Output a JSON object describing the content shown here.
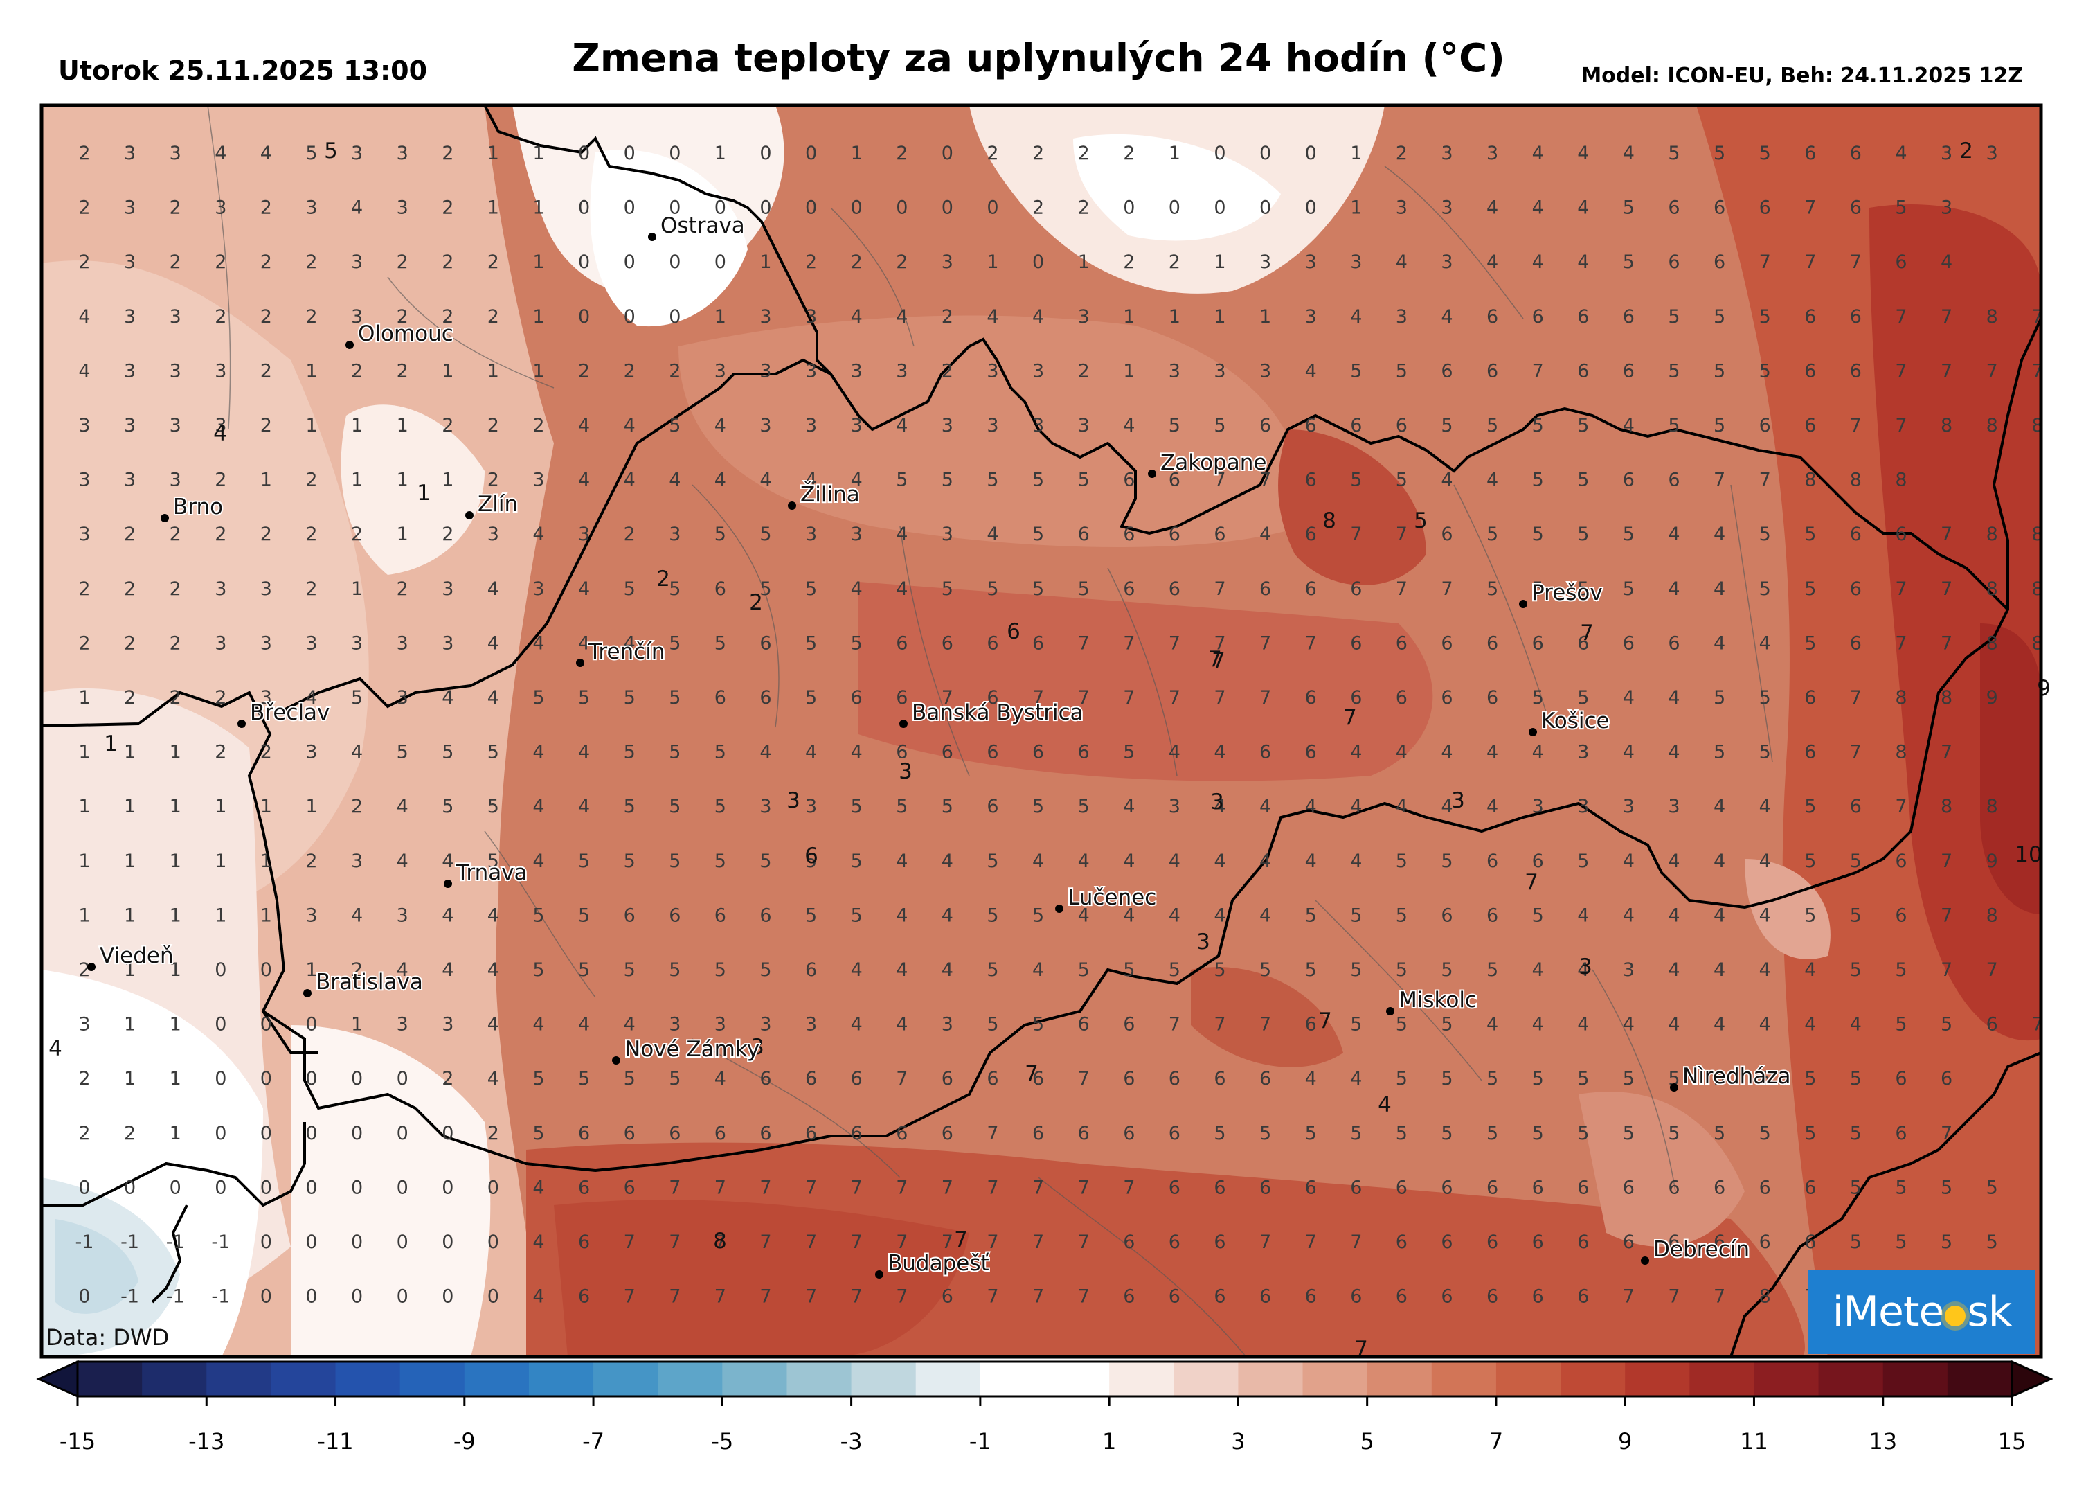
{
  "header": {
    "date": "Utorok 25.11.2025 13:00",
    "title": "Zmena teploty za uplynulých 24 hodín (°C)",
    "model": "Model: ICON-EU, Beh: 24.11.2025 12Z"
  },
  "credit": "Data: DWD",
  "logo": {
    "left": "iMete",
    "right": "sk"
  },
  "colorbar": {
    "ticks": [
      "-15",
      "-13",
      "-11",
      "-9",
      "-7",
      "-5",
      "-3",
      "-1",
      "1",
      "3",
      "5",
      "7",
      "9",
      "11",
      "13",
      "15"
    ],
    "colors": [
      "#1a1f4e",
      "#1d2c6b",
      "#223a87",
      "#24459b",
      "#2453ad",
      "#2563b8",
      "#2a74c0",
      "#3385c4",
      "#4595c6",
      "#5da5c9",
      "#7bb4cc",
      "#9dc5d3",
      "#c0d7df",
      "#e3ecf0",
      "#ffffff",
      "#ffffff",
      "#f8ebe6",
      "#f0d2c8",
      "#e8b9a8",
      "#e1a28b",
      "#d98b70",
      "#d27557",
      "#c95f43",
      "#bf4a35",
      "#b2382b",
      "#a02a25",
      "#8c1e21",
      "#76151d",
      "#5e0e18",
      "#430913"
    ]
  },
  "cities": [
    {
      "name": "Ostrava"
    },
    {
      "name": "Olomouc"
    },
    {
      "name": "Brno"
    },
    {
      "name": "Zlín"
    },
    {
      "name": "Žilina"
    },
    {
      "name": "Zakopane"
    },
    {
      "name": "Prešov"
    },
    {
      "name": "Trenčín"
    },
    {
      "name": "Břeclav"
    },
    {
      "name": "Banská Bystrica"
    },
    {
      "name": "Košice"
    },
    {
      "name": "Trnava"
    },
    {
      "name": "Lučenec"
    },
    {
      "name": "Viedeň"
    },
    {
      "name": "Bratislava"
    },
    {
      "name": "Miskolc"
    },
    {
      "name": "Nové Zámky"
    },
    {
      "name": "Nìredháza"
    },
    {
      "name": "Budapešť"
    },
    {
      "name": "Debrecín"
    }
  ],
  "grid_values": [
    "2 3 3 4 4 5 3 3 2 1 1 0 0 0 1 0 0 1 2 0 2 2 2 2 1 0 0 0 1 2 3 3 4 4 4 5 5 5 6 6 4 3 3",
    "2 3 2 3 2 3 4 3 2 1 1 0 0 0 0 0 0 0 0 0 0 2 2 0 0 0 0 0 1 3 3 4 4 4 5 6 6 6 7 6 5 3",
    "2 3 2 2 2 2 3 2 2 2 1 0 0 0 0 1 2 2 2 3 1 0 1 2 2 1 3 3 3 4 3 4 4 4 5 6 6 7 7 7 6 4",
    "4 3 3 2 2 2 3 2 2 2 1 0 0 0 1 3 3 4 4 2 4 4 3 1 1 1 1 3 4 3 4 6 6 6 6 5 5 5 6 6 7 7 8 7 6",
    "4 3 3 3 2 1 2 2 1 1 1 2 2 2 3 3 3 3 3 2 3 3 2 1 3 3 3 4 5 5 6 6 7 6 6 5 5 5 6 6 7 7 7 7 8 8",
    "3 3 3 3 2 1 1 1 2 2 2 4 4 5 4 3 3 3 4 3 3 3 3 4 5 5 6 6 6 6 5 5 5 5 4 5 5 6 6 7 7 8 8 8",
    "3 3 3 2 1 2 1 1 1 2 3 4 4 4 4 4 4 4 5 5 5 5 5 6 6 7 7 6 5 5 4 4 5 5 6 6 7 7 8 8 8",
    "3 2 2 2 2 2 2 1 2 3 4 3 2 3 5 5 3 3 4 3 4 5 6 6 6 6 4 6 7 7 6 5 5 5 5 4 4 5 5 6 6 7 8 8 8",
    "2 2 2 3 3 2 1 2 3 4 3 4 5 5 6 5 5 4 4 5 5 5 5 6 6 7 6 6 6 7 7 5 5 5 5 4 4 5 5 6 7 7 8 8 8",
    "2 2 2 3 3 3 3 3 3 4 4 4 4 5 5 6 5 5 6 6 6 6 7 7 7 7 7 7 6 6 6 6 6 6 6 6 4 4 5 6 7 7 8 8 8",
    "1 2 2 2 3 4 5 3 4 4 5 5 5 5 6 6 5 6 6 7 6 7 7 7 7 7 7 6 6 6 6 6 5 5 4 4 5 5 6 7 8 8 9",
    "1 1 1 2 2 3 4 5 5 5 4 4 5 5 5 4 4 4 6 6 6 6 6 5 4 4 6 6 4 4 4 4 4 3 4 4 5 5 6 7 8 7",
    "1 1 1 1 1 1 2 4 5 5 4 4 5 5 5 3 3 5 5 5 6 5 5 4 3 4 4 4 4 4 4 4 3 3 3 3 4 4 5 6 7 8 8",
    "1 1 1 1 1 2 3 4 4 5 4 5 5 5 5 5 5 5 4 4 5 4 4 4 4 4 4 4 4 5 5 6 6 5 4 4 4 4 5 5 6 7 9",
    "1 1 1 1 1 3 4 3 4 4 5 5 6 6 6 6 5 5 4 4 5 5 4 4 4 4 4 5 5 5 6 6 5 4 4 4 4 4 5 5 6 7 8",
    "2 1 1 0 0 1 2 4 4 4 5 5 5 5 5 5 6 4 4 4 5 4 5 5 5 5 5 5 5 5 5 5 4 4 3 4 4 4 4 5 5 7 7",
    "3 1 1 0 0 0 1 3 3 4 4 4 4 3 3 3 3 4 4 3 5 5 6 6 7 7 7 6 5 5 5 4 4 4 4 4 4 4 4 4 5 5 6 7",
    "2 1 1 0 0 0 0 0 2 4 5 5 5 5 4 6 6 6 7 6 6 6 7 6 6 6 6 4 4 5 5 5 5 5 5 5 5 5 5 5 6 6",
    "2 2 1 0 0 0 0 0 0 2 5 6 6 6 6 6 6 6 6 6 7 6 6 6 6 5 5 5 5 5 5 5 5 5 5 5 5 5 5 5 6 7",
    "0 0 0 0 0 0 0 0 0 0 4 6 6 7 7 7 7 7 7 7 7 7 7 7 6 6 6 6 6 6 6 6 6 6 6 6 6 6 6 5 5 5 5",
    "-1 -1 -1 -1 0 0 0 0 0 0 4 6 7 7 7 7 7 7 7 7 7 7 7 6 6 6 7 7 7 6 6 6 6 6 6 6 6 6 6 5 5 5 5",
    "0 -1 -1 -1 0 0 0 0 0 0 4 6 7 7 7 7 7 7 7 6 7 7 7 6 6 6 6 6 6 6 6 6 6 6 7 7 7 8 7 7 5 5 5"
  ],
  "contour_labels": [
    "5",
    "2",
    "4",
    "1",
    "2",
    "6",
    "7",
    "7",
    "7",
    "8",
    "5",
    "7",
    "3",
    "3",
    "3",
    "6",
    "3",
    "7",
    "3",
    "3",
    "7",
    "7",
    "4",
    "7",
    "8",
    "7",
    "10",
    "9",
    "1",
    "4",
    "3",
    "2"
  ]
}
